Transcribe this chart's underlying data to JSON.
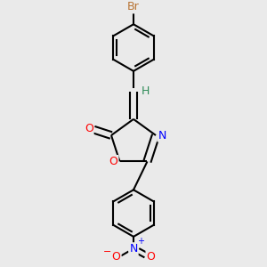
{
  "background_color": "#eaeaea",
  "bond_color": "#000000",
  "atom_colors": {
    "Br": "#b87333",
    "O": "#ff0000",
    "N": "#0000ff",
    "H": "#2e8b57",
    "C": "#000000"
  },
  "font_size": 9,
  "figsize": [
    3.0,
    3.0
  ],
  "dpi": 100
}
